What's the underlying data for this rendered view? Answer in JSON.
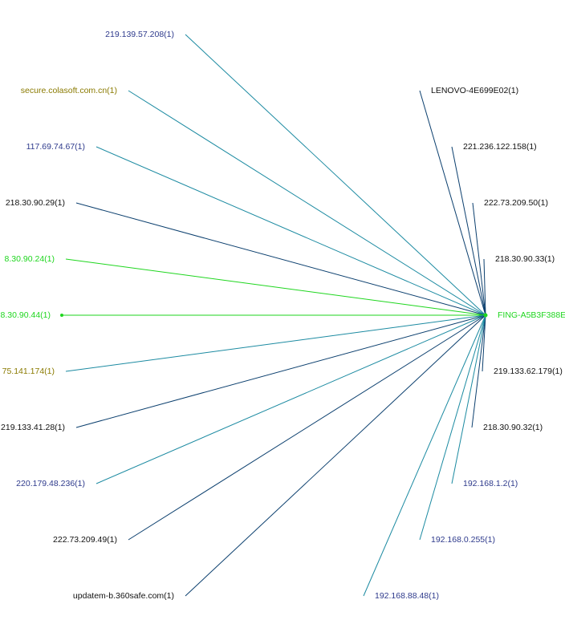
{
  "colors": {
    "background": "#ffffff",
    "teal": "#1b8aa1",
    "navy": "#0b3f6e",
    "green": "#1ed61e",
    "label_blue": "#2e3a8c",
    "label_olive": "#8a7a00",
    "label_black": "#111111",
    "label_green": "#1ed61e"
  },
  "hub": {
    "label": "FING-A5B3F388E",
    "color": "#1ed61e"
  },
  "nodes": [
    {
      "label": "219.139.57.208(1)",
      "side": "left",
      "label_color": "#2e3a8c",
      "edge_color": "#1b8aa1"
    },
    {
      "label": "secure.colasoft.com.cn(1)",
      "side": "left",
      "label_color": "#8a7a00",
      "edge_color": "#1b8aa1"
    },
    {
      "label": "117.69.74.67(1)",
      "side": "left",
      "label_color": "#2e3a8c",
      "edge_color": "#1b8aa1"
    },
    {
      "label": "218.30.90.29(1)",
      "side": "left",
      "label_color": "#111111",
      "edge_color": "#0b3f6e"
    },
    {
      "label": "8.30.90.24(1)",
      "side": "left",
      "label_color": "#1ed61e",
      "edge_color": "#1ed61e"
    },
    {
      "label": "8.30.90.44(1)",
      "side": "left",
      "label_color": "#1ed61e",
      "edge_color": "#1ed61e",
      "selected": true
    },
    {
      "label": "75.141.174(1)",
      "side": "left",
      "label_color": "#8a7a00",
      "edge_color": "#1b8aa1"
    },
    {
      "label": "219.133.41.28(1)",
      "side": "left",
      "label_color": "#111111",
      "edge_color": "#0b3f6e"
    },
    {
      "label": "220.179.48.236(1)",
      "side": "left",
      "label_color": "#2e3a8c",
      "edge_color": "#1b8aa1"
    },
    {
      "label": "222.73.209.49(1)",
      "side": "left",
      "label_color": "#111111",
      "edge_color": "#0b3f6e"
    },
    {
      "label": "updatem-b.360safe.com(1)",
      "side": "left",
      "label_color": "#111111",
      "edge_color": "#0b3f6e"
    },
    {
      "label": "LENOVO-4E699E02(1)",
      "side": "right",
      "label_color": "#111111",
      "edge_color": "#0b3f6e"
    },
    {
      "label": "221.236.122.158(1)",
      "side": "right",
      "label_color": "#111111",
      "edge_color": "#0b3f6e"
    },
    {
      "label": "222.73.209.50(1)",
      "side": "right",
      "label_color": "#111111",
      "edge_color": "#0b3f6e"
    },
    {
      "label": "218.30.90.33(1)",
      "side": "right",
      "label_color": "#111111",
      "edge_color": "#0b3f6e"
    },
    {
      "label": "219.133.62.179(1)",
      "side": "right",
      "label_color": "#111111",
      "edge_color": "#0b3f6e"
    },
    {
      "label": "218.30.90.32(1)",
      "side": "right",
      "label_color": "#111111",
      "edge_color": "#0b3f6e"
    },
    {
      "label": "192.168.1.2(1)",
      "side": "right",
      "label_color": "#2e3a8c",
      "edge_color": "#1b8aa1"
    },
    {
      "label": "192.168.0.255(1)",
      "side": "right",
      "label_color": "#2e3a8c",
      "edge_color": "#1b8aa1"
    },
    {
      "label": "192.168.88.48(1)",
      "side": "right",
      "label_color": "#2e3a8c",
      "edge_color": "#1b8aa1"
    }
  ]
}
